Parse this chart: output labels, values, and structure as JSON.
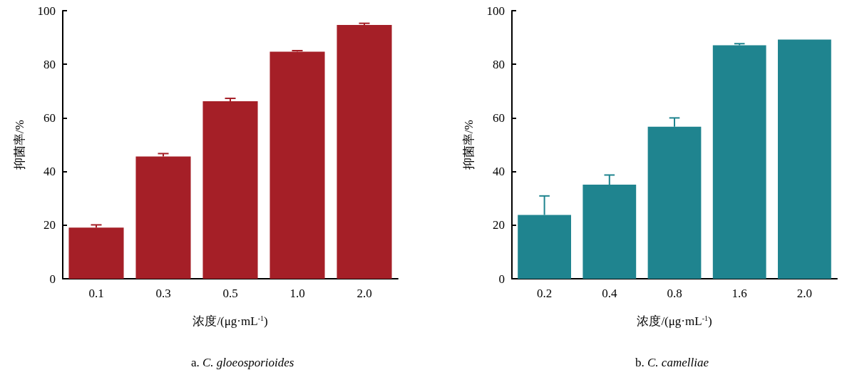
{
  "chart_data": [
    {
      "type": "bar",
      "title": "a. C. gloeosporioides",
      "xlabel": "浓度/(μg·mL$^{-1}$)",
      "ylabel": "抑菌率/%",
      "categories": [
        "0.1",
        "0.3",
        "0.5",
        "1.0",
        "2.0"
      ],
      "values": [
        19.1,
        45.6,
        66.2,
        84.7,
        94.7
      ],
      "color": "#a51f27",
      "errors": [
        [
          19.1,
          20.1
        ],
        [
          45.6,
          46.7
        ],
        [
          66.2,
          67.3
        ],
        [
          84.7,
          85.1
        ],
        [
          94.7,
          95.3
        ]
      ],
      "ylim": [
        0,
        100
      ],
      "yticks": [
        0,
        20,
        40,
        60,
        80,
        100
      ]
    },
    {
      "type": "bar",
      "title": "b. C. camelliae",
      "xlabel": "浓度/(μg·mL$^{-1}$)",
      "ylabel": "抑菌率/%",
      "categories": [
        "0.2",
        "0.4",
        "0.8",
        "1.6",
        "2.0"
      ],
      "values": [
        23.8,
        35.1,
        56.7,
        87.1,
        89.2
      ],
      "color": "#1f848f",
      "errors": [
        [
          23.8,
          30.9
        ],
        [
          35.1,
          38.7
        ],
        [
          56.7,
          60.0
        ],
        [
          87.1,
          87.7
        ],
        null
      ],
      "ylim": [
        0,
        100
      ],
      "yticks": [
        0,
        20,
        40,
        60,
        80,
        100
      ]
    }
  ]
}
